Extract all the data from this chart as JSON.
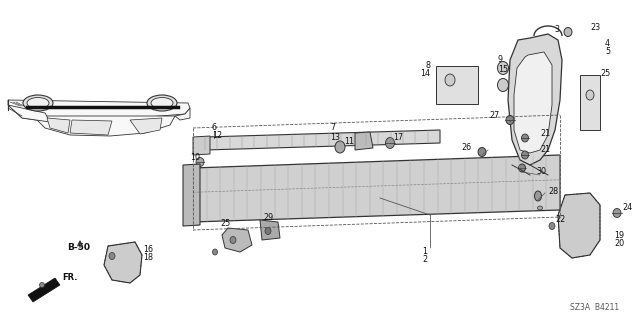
{
  "bg_color": "#ffffff",
  "line_color": "#333333",
  "text_color": "#111111",
  "diagram_code": "SZ3A  B4211",
  "fig_width": 6.4,
  "fig_height": 3.19,
  "dpi": 100
}
